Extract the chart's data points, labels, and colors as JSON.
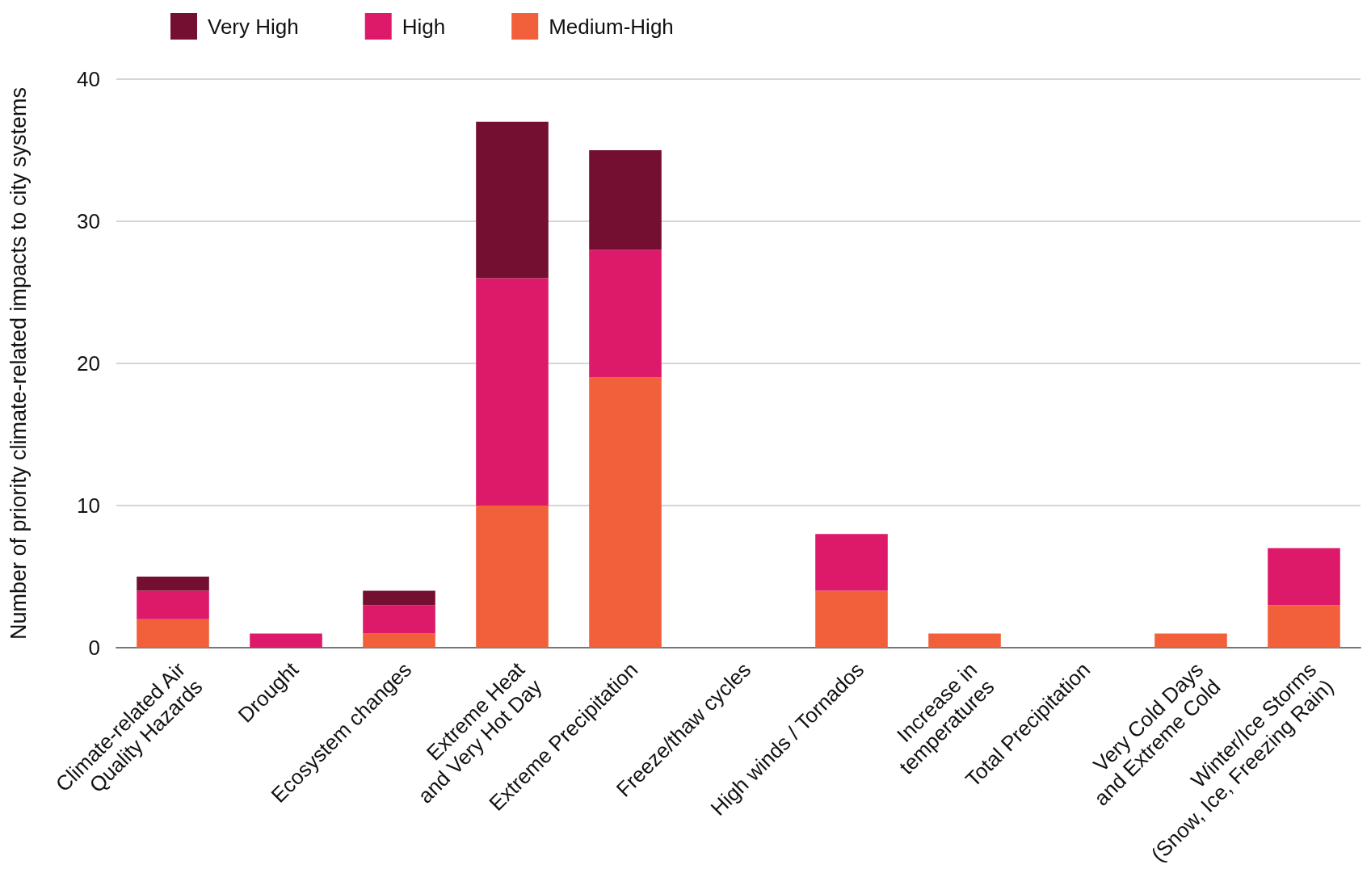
{
  "chart_data": {
    "type": "bar",
    "stacked": true,
    "ylabel": "Number of priority climate-related impacts to city systems",
    "categories": [
      "Climate-related Air\nQuality Hazards",
      "Drought",
      "Ecosystem changes",
      "Extreme Heat\nand Very Hot Day",
      "Extreme Precipitation",
      "Freeze/thaw cycles",
      "High winds / Tornados",
      "Increase in\ntemperatures",
      "Total Precipitation",
      "Very Cold Days\nand Extreme Cold",
      "Winter/Ice Storms\n(Snow, Ice, Freezing Rain)"
    ],
    "series": [
      {
        "name": "Medium-High",
        "color": "#f2603b",
        "values": [
          2,
          0,
          1,
          10,
          19,
          0,
          4,
          1,
          0,
          1,
          3
        ]
      },
      {
        "name": "High",
        "color": "#dd1a69",
        "values": [
          2,
          1,
          2,
          16,
          9,
          0,
          4,
          0,
          0,
          0,
          4
        ]
      },
      {
        "name": "Very High",
        "color": "#740f32",
        "values": [
          1,
          0,
          1,
          11,
          7,
          0,
          0,
          0,
          0,
          0,
          0
        ]
      }
    ],
    "ylim": [
      0,
      40
    ],
    "yticks": [
      0,
      10,
      20,
      30,
      40
    ],
    "grid": "y",
    "legend": "top left"
  }
}
